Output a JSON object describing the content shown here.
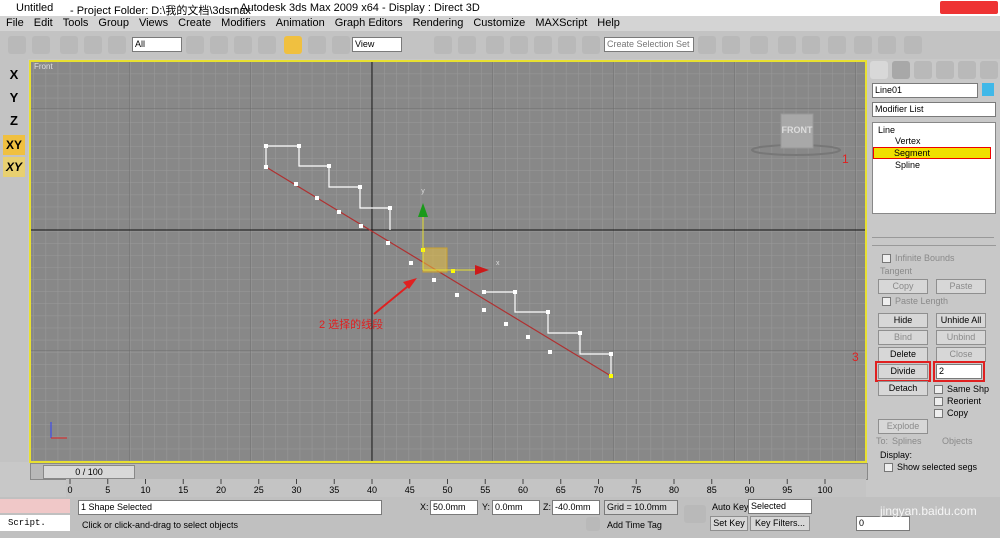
{
  "title_bar": {
    "file": "Untitled",
    "project": "- Project Folder: D:\\我的文档\\3dsmax",
    "app": "- Autodesk 3ds Max  2009 x64",
    "display": "- Display : Direct 3D"
  },
  "menu": [
    "File",
    "Edit",
    "Tools",
    "Group",
    "Views",
    "Create",
    "Modifiers",
    "Animation",
    "Graph Editors",
    "Rendering",
    "Customize",
    "MAXScript",
    "Help"
  ],
  "toolbar": {
    "selection_filter": "All",
    "reference_coord": "View",
    "named_selection": "Create Selection Set"
  },
  "axis_constraints": [
    "X",
    "Y",
    "Z",
    "XY",
    "XY"
  ],
  "viewport": {
    "label": "Front",
    "viewcube": "FRONT",
    "gizmo_y": "y",
    "gizmo_x": "x",
    "annotations": [
      "1",
      "2 选择的线段",
      "3"
    ]
  },
  "command_panel": {
    "object_name": "Line01",
    "modifier_list": "Modifier List",
    "stack": [
      "Line",
      "Vertex",
      "Segment",
      "Spline"
    ],
    "geometry": {
      "infinite_bounds": "Infinite Bounds",
      "tangent": "Tangent",
      "copy": "Copy",
      "paste": "Paste",
      "paste_length": "Paste Length",
      "hide": "Hide",
      "unhide_all": "Unhide All",
      "bind": "Bind",
      "unbind": "Unbind",
      "delete": "Delete",
      "close": "Close",
      "divide": "Divide",
      "divide_count": "2",
      "detach": "Detach",
      "same_shp": "Same Shp",
      "reorient": "Reorient",
      "copy_check": "Copy",
      "explode": "Explode",
      "to": "To:",
      "splines": "Splines",
      "objects": "Objects",
      "display": "Display:",
      "show_selected_segs": "Show selected segs"
    }
  },
  "timeline": {
    "frame": "0 / 100",
    "ticks": [
      "0",
      "5",
      "10",
      "15",
      "20",
      "25",
      "30",
      "35",
      "40",
      "45",
      "50",
      "55",
      "60",
      "65",
      "70",
      "75",
      "80",
      "85",
      "90",
      "95",
      "100"
    ]
  },
  "status": {
    "script": "Script.",
    "selected": "1 Shape Selected",
    "prompt": "Click or click-and-drag to select objects",
    "x_label": "X:",
    "x": "50.0mm",
    "y_label": "Y:",
    "y": "0.0mm",
    "z_label": "Z:",
    "z": "-40.0mm",
    "grid": "Grid = 10.0mm",
    "add_time_tag": "Add Time Tag",
    "auto_key": "Auto Key",
    "key_mode": "Selected",
    "set_key": "Set Key",
    "key_filters": "Key Filters...",
    "frame": "0"
  },
  "watermark": "jingyan.baidu.com"
}
